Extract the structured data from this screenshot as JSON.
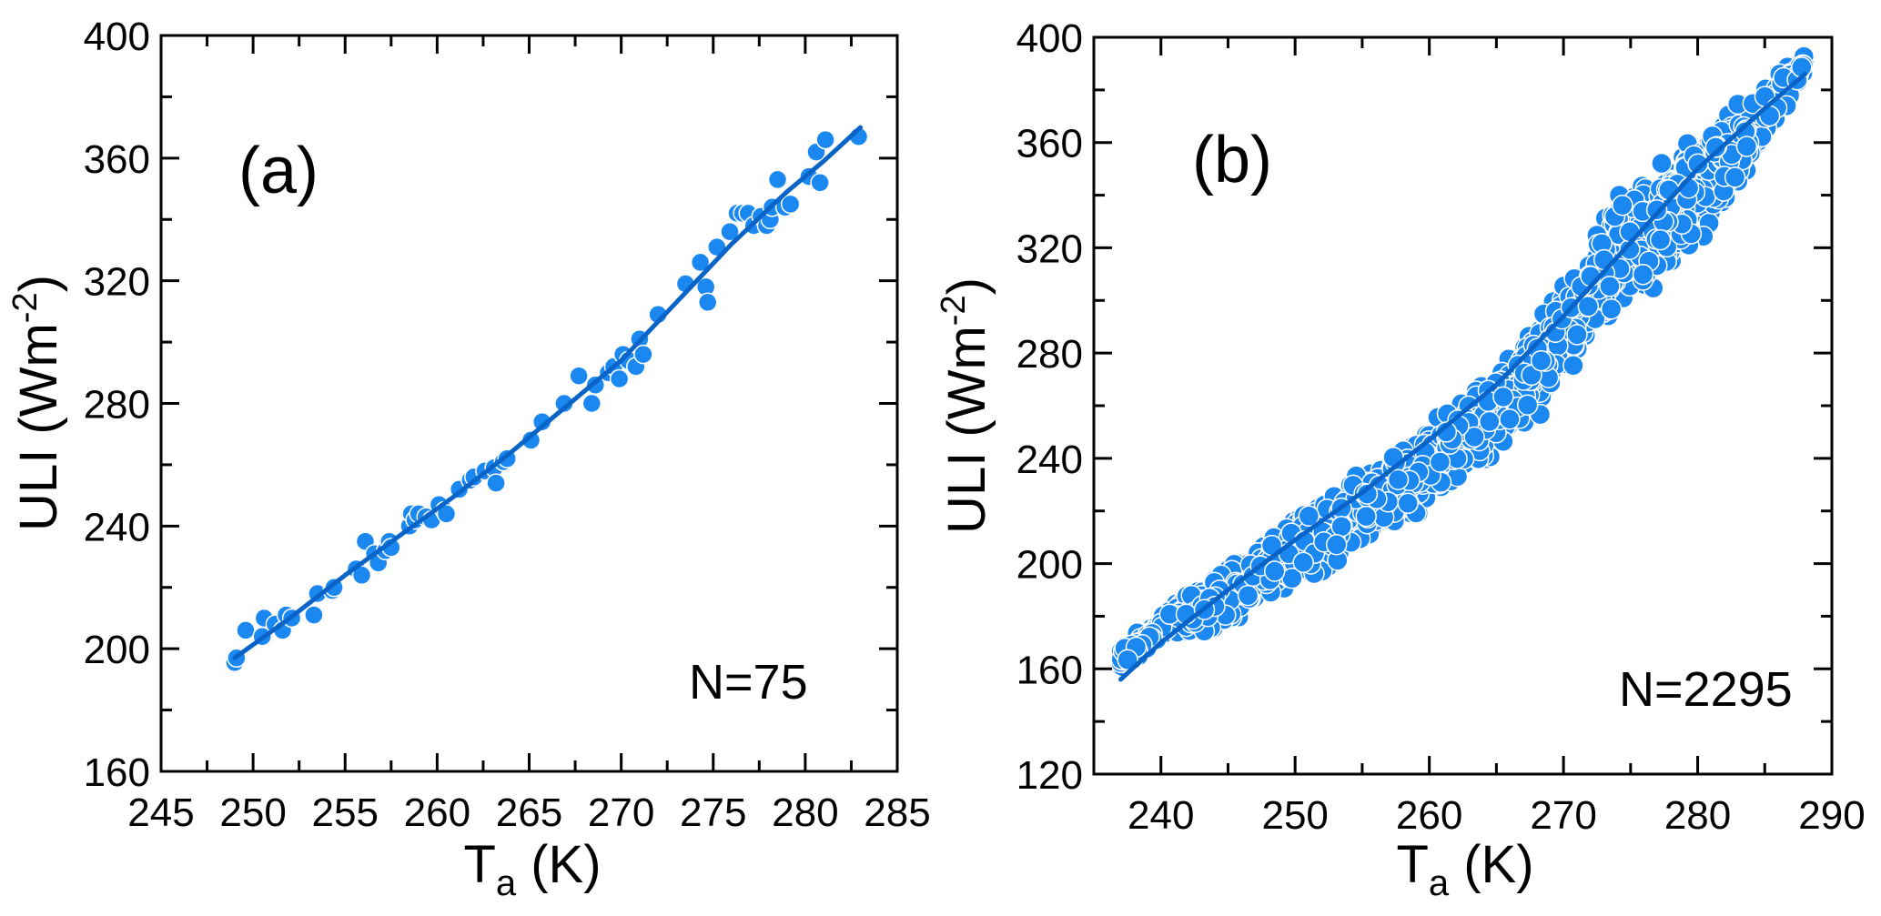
{
  "colors": {
    "point": "#1a88f0",
    "point_stroke": "#ffffff",
    "fit_line": "#0a64c8",
    "axis": "#000000"
  },
  "chart_data": [
    {
      "type": "scatter",
      "panel_label": "(a)",
      "annotation": "N=75",
      "xlabel_main": "T",
      "xlabel_sub": "a",
      "xlabel_unit": " (K)",
      "ylabel_main": "ULI (Wm",
      "ylabel_sup": "-2",
      "ylabel_end": ")",
      "xlim": [
        245,
        285
      ],
      "ylim": [
        160,
        400
      ],
      "xticks": [
        "245",
        "250",
        "255",
        "260",
        "265",
        "270",
        "275",
        "280",
        "285"
      ],
      "yticks": [
        "160",
        "200",
        "240",
        "280",
        "320",
        "360",
        "400"
      ],
      "x_minor_step": 2.5,
      "y_minor_step": 20,
      "points": [
        [
          249.0,
          195.5
        ],
        [
          249.1,
          197
        ],
        [
          249.6,
          206
        ],
        [
          250.5,
          204
        ],
        [
          250.6,
          210
        ],
        [
          251.2,
          208
        ],
        [
          251.6,
          206
        ],
        [
          251.8,
          211
        ],
        [
          252.1,
          210
        ],
        [
          253.3,
          211
        ],
        [
          253.5,
          218
        ],
        [
          254.3,
          219
        ],
        [
          254.4,
          220
        ],
        [
          255.6,
          226
        ],
        [
          255.9,
          224
        ],
        [
          256.1,
          235
        ],
        [
          256.6,
          231
        ],
        [
          256.8,
          228
        ],
        [
          257.2,
          232
        ],
        [
          257.4,
          235
        ],
        [
          257.5,
          233
        ],
        [
          258.5,
          240
        ],
        [
          258.6,
          244
        ],
        [
          258.8,
          242
        ],
        [
          259.0,
          244
        ],
        [
          259.4,
          243
        ],
        [
          259.7,
          242
        ],
        [
          260.1,
          247
        ],
        [
          260.4,
          245
        ],
        [
          260.5,
          244
        ],
        [
          261.2,
          252
        ],
        [
          261.8,
          255
        ],
        [
          262.0,
          256
        ],
        [
          262.6,
          258
        ],
        [
          263.1,
          259
        ],
        [
          263.2,
          254
        ],
        [
          263.6,
          261
        ],
        [
          263.8,
          262
        ],
        [
          265.1,
          268
        ],
        [
          265.7,
          274
        ],
        [
          266.9,
          280
        ],
        [
          267.7,
          289
        ],
        [
          268.4,
          280
        ],
        [
          268.6,
          286
        ],
        [
          269.3,
          290
        ],
        [
          269.6,
          292
        ],
        [
          269.9,
          288
        ],
        [
          270.1,
          296
        ],
        [
          270.4,
          294
        ],
        [
          270.8,
          292
        ],
        [
          271.0,
          301
        ],
        [
          271.2,
          296
        ],
        [
          272.0,
          309
        ],
        [
          273.5,
          319
        ],
        [
          274.3,
          326
        ],
        [
          274.6,
          318
        ],
        [
          274.7,
          313
        ],
        [
          275.2,
          331
        ],
        [
          275.9,
          336
        ],
        [
          276.3,
          342
        ],
        [
          276.6,
          342
        ],
        [
          276.9,
          342
        ],
        [
          277.2,
          338
        ],
        [
          277.6,
          341
        ],
        [
          277.9,
          338
        ],
        [
          278.1,
          340
        ],
        [
          278.2,
          344
        ],
        [
          278.5,
          353
        ],
        [
          278.9,
          344
        ],
        [
          279.2,
          345
        ],
        [
          280.2,
          354
        ],
        [
          280.6,
          362
        ],
        [
          280.8,
          352
        ],
        [
          281.1,
          366
        ],
        [
          282.9,
          367
        ]
      ],
      "fit_curve": [
        [
          249,
          197
        ],
        [
          252,
          210
        ],
        [
          255,
          224
        ],
        [
          258,
          237
        ],
        [
          261,
          250
        ],
        [
          264,
          264
        ],
        [
          267,
          279
        ],
        [
          270,
          294
        ],
        [
          273,
          313
        ],
        [
          276,
          332
        ],
        [
          279,
          349
        ],
        [
          281,
          359
        ],
        [
          283,
          370
        ]
      ]
    },
    {
      "type": "scatter",
      "panel_label": "(b)",
      "annotation": "N=2295",
      "xlabel_main": "T",
      "xlabel_sub": "a",
      "xlabel_unit": " (K)",
      "ylabel_main": "ULI (Wm",
      "ylabel_sup": "-2",
      "ylabel_end": ")",
      "xlim": [
        235,
        290
      ],
      "ylim": [
        120,
        400
      ],
      "xticks": [
        "240",
        "250",
        "260",
        "270",
        "280",
        "290"
      ],
      "yticks": [
        "120",
        "160",
        "200",
        "240",
        "280",
        "320",
        "360",
        "400"
      ],
      "x_minor_step": 5,
      "y_minor_step": 20,
      "n_points": 2295,
      "scatter_band": [
        [
          237,
          158,
          170
        ],
        [
          241,
          172,
          186
        ],
        [
          245,
          172,
          202
        ],
        [
          248,
          186,
          212
        ],
        [
          252,
          192,
          228
        ],
        [
          256,
          206,
          240
        ],
        [
          260,
          216,
          256
        ],
        [
          264,
          236,
          270
        ],
        [
          268,
          252,
          295
        ],
        [
          271,
          274,
          320
        ],
        [
          274,
          292,
          345
        ],
        [
          277,
          300,
          358
        ],
        [
          280,
          318,
          368
        ],
        [
          283,
          340,
          378
        ],
        [
          286,
          365,
          388
        ],
        [
          288,
          385,
          395
        ]
      ],
      "fit_curve": [
        [
          237,
          156
        ],
        [
          240,
          170
        ],
        [
          245,
          190
        ],
        [
          250,
          209
        ],
        [
          255,
          227
        ],
        [
          260,
          247
        ],
        [
          265,
          268
        ],
        [
          270,
          294
        ],
        [
          275,
          322
        ],
        [
          280,
          350
        ],
        [
          285,
          373
        ],
        [
          288,
          386
        ]
      ]
    }
  ]
}
